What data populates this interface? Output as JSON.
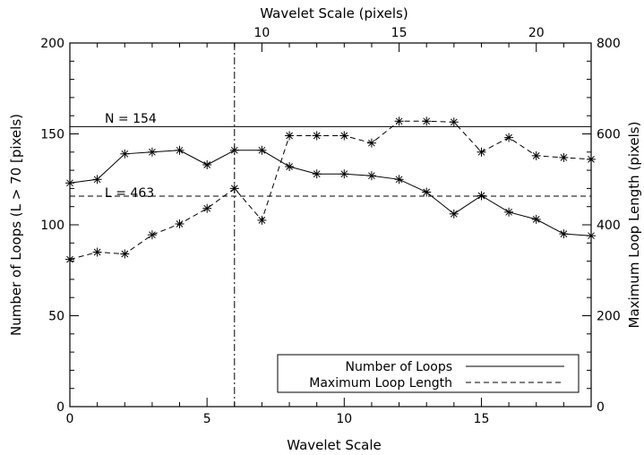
{
  "chart_data": {
    "type": "line",
    "xlabel": "Wavelet Scale",
    "ylabel": "Number of Loops (L > 70 [pixels)",
    "x2label": "Wavelet Scale (pixels)",
    "y2label": "Maximum Loop Length (pixels)",
    "xlim": [
      0,
      19
    ],
    "ylim": [
      0,
      200
    ],
    "y2lim": [
      0,
      800
    ],
    "x2lim": [
      3,
      22
    ],
    "xticks": [
      0,
      5,
      10,
      15
    ],
    "yticks": [
      0,
      50,
      100,
      150,
      200
    ],
    "y2ticks": [
      0,
      200,
      400,
      600,
      800
    ],
    "x2ticks": [
      10,
      15,
      20
    ],
    "grid": false,
    "legend_position": "bottom-right",
    "x": [
      0,
      1,
      2,
      3,
      4,
      5,
      6,
      7,
      8,
      9,
      10,
      11,
      12,
      13,
      14,
      15,
      16,
      17,
      18,
      19
    ],
    "series": [
      {
        "name": "Number of Loops",
        "axis": "left",
        "line_style": "solid",
        "values": [
          123,
          125,
          139,
          140,
          141,
          133,
          141,
          141,
          132,
          128,
          128,
          127,
          125,
          118,
          106,
          116,
          107,
          103,
          95,
          94
        ]
      },
      {
        "name": "Maximum Loop Length",
        "axis": "right",
        "line_style": "dashed",
        "values": [
          324,
          340,
          336,
          378,
          402,
          436,
          480,
          410,
          596,
          596,
          596,
          580,
          628,
          628,
          626,
          560,
          592,
          552,
          548,
          544
        ]
      }
    ],
    "reference_lines": [
      {
        "orientation": "horizontal",
        "axis": "left",
        "value": 154,
        "style": "solid",
        "label": "N = 154"
      },
      {
        "orientation": "horizontal",
        "axis": "right",
        "value": 463,
        "style": "dashed",
        "label": "L = 463"
      },
      {
        "orientation": "vertical",
        "value": 6,
        "style": "dashdot",
        "label": ""
      }
    ]
  }
}
